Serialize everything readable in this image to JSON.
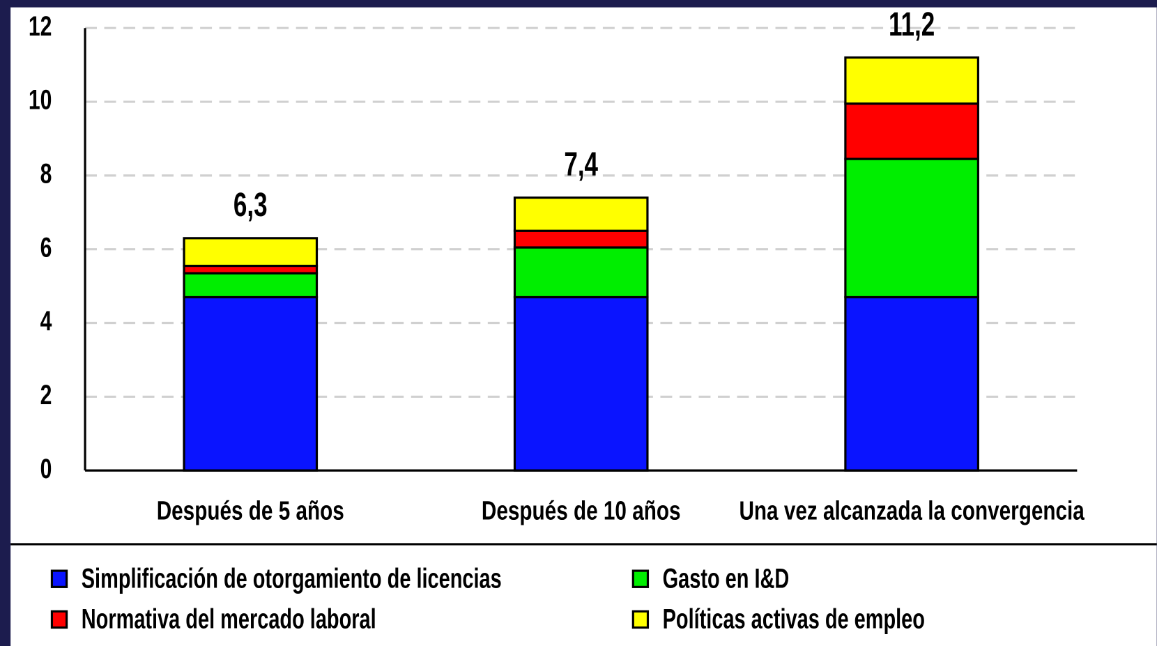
{
  "chart_data": {
    "type": "stacked_bar",
    "categories": [
      "Después de 5 años",
      "Después de 10 años",
      "Una vez alcanzada la convergencia"
    ],
    "series": [
      {
        "name": "Simplificación de otorgamiento de licencias",
        "color": "#0a14ff",
        "values": [
          4.7,
          4.7,
          4.7
        ]
      },
      {
        "name": "Gasto en I&D",
        "color": "#00ee00",
        "values": [
          0.65,
          1.35,
          3.75
        ]
      },
      {
        "name": "Normativa del mercado laboral",
        "color": "#ff0000",
        "values": [
          0.2,
          0.45,
          1.5
        ]
      },
      {
        "name": "Políticas activas de empleo",
        "color": "#ffff00",
        "values": [
          0.75,
          0.9,
          1.25
        ]
      }
    ],
    "totals": [
      6.3,
      7.4,
      11.2
    ],
    "total_labels": [
      "6,3",
      "7,4",
      "11,2"
    ],
    "ylim": [
      0,
      12
    ],
    "yticks": [
      0,
      2,
      4,
      6,
      8,
      10,
      12
    ],
    "grid": true
  }
}
